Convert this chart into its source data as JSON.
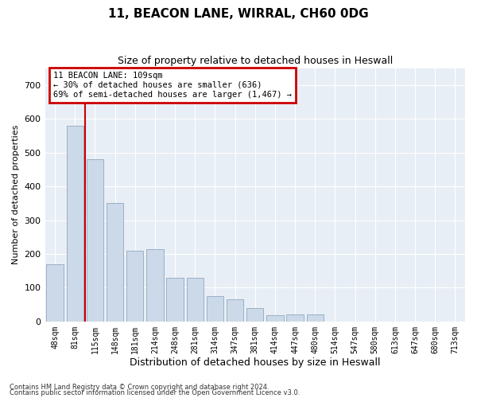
{
  "title1": "11, BEACON LANE, WIRRAL, CH60 0DG",
  "title2": "Size of property relative to detached houses in Heswall",
  "xlabel": "Distribution of detached houses by size in Heswall",
  "ylabel": "Number of detached properties",
  "categories": [
    "48sqm",
    "81sqm",
    "115sqm",
    "148sqm",
    "181sqm",
    "214sqm",
    "248sqm",
    "281sqm",
    "314sqm",
    "347sqm",
    "381sqm",
    "414sqm",
    "447sqm",
    "480sqm",
    "514sqm",
    "547sqm",
    "580sqm",
    "613sqm",
    "647sqm",
    "680sqm",
    "713sqm"
  ],
  "values": [
    170,
    580,
    480,
    350,
    210,
    215,
    130,
    130,
    75,
    65,
    40,
    18,
    20,
    20,
    0,
    0,
    0,
    0,
    0,
    0,
    0
  ],
  "bar_color": "#ccd9e8",
  "bar_edge_color": "#9ab0c8",
  "vline_color": "#cc0000",
  "annotation_text": "11 BEACON LANE: 109sqm\n← 30% of detached houses are smaller (636)\n69% of semi-detached houses are larger (1,467) →",
  "annotation_box_color": "#ffffff",
  "annotation_box_edge": "#cc0000",
  "ylim": [
    0,
    750
  ],
  "yticks": [
    0,
    100,
    200,
    300,
    400,
    500,
    600,
    700
  ],
  "plot_bg_color": "#e8eef5",
  "grid_color": "#ffffff",
  "footer1": "Contains HM Land Registry data © Crown copyright and database right 2024.",
  "footer2": "Contains public sector information licensed under the Open Government Licence v3.0."
}
